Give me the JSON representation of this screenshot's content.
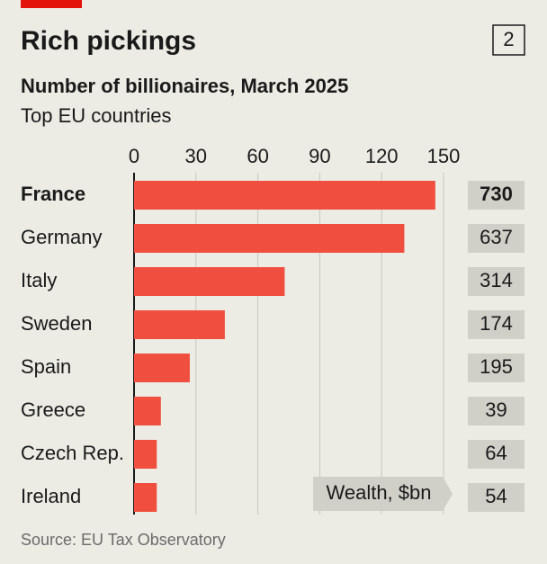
{
  "chart_data": {
    "type": "hbar",
    "title": "Rich pickings",
    "page_number": "2",
    "subtitle": "Number of billionaires, March 2025",
    "subtitle2": "Top EU countries",
    "categories": [
      "France",
      "Germany",
      "Italy",
      "Sweden",
      "Spain",
      "Greece",
      "Czech Rep.",
      "Ireland"
    ],
    "values": [
      146,
      131,
      73,
      44,
      27,
      13,
      11,
      11
    ],
    "color": "#f04e3e",
    "xlim": [
      0,
      150
    ],
    "xticks": [
      0,
      30,
      60,
      90,
      120,
      150
    ],
    "grid": true,
    "wealth": {
      "label": "Wealth, $bn",
      "values": [
        730,
        637,
        314,
        174,
        195,
        39,
        64,
        54
      ]
    },
    "source": "Source: EU Tax Observatory"
  }
}
